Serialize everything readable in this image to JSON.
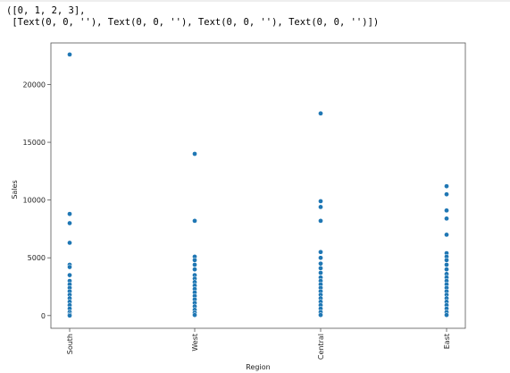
{
  "output_text": {
    "line1": "([0, 1, 2, 3],",
    "line2": " [Text(0, 0, ''), Text(0, 0, ''), Text(0, 0, ''), Text(0, 0, '')])"
  },
  "chart_data": {
    "type": "scatter",
    "title": "",
    "xlabel": "Region",
    "ylabel": "Sales",
    "categories": [
      "South",
      "West",
      "Central",
      "East"
    ],
    "ylim": [
      -1100,
      23600
    ],
    "yticks": [
      0,
      5000,
      10000,
      15000,
      20000
    ],
    "grid": false,
    "marker_color": "#1f77b4",
    "series": [
      {
        "values": [
          [
            0,
            22600
          ],
          [
            0,
            8800
          ],
          [
            0,
            8000
          ],
          [
            0,
            6300
          ],
          [
            0,
            4400
          ],
          [
            0,
            4200
          ],
          [
            0,
            3500
          ],
          [
            0,
            3000
          ],
          [
            0,
            2700
          ],
          [
            0,
            2400
          ],
          [
            0,
            2100
          ],
          [
            0,
            1800
          ],
          [
            0,
            1500
          ],
          [
            0,
            1200
          ],
          [
            0,
            900
          ],
          [
            0,
            600
          ],
          [
            0,
            300
          ],
          [
            0,
            100
          ],
          [
            0,
            0
          ],
          [
            1,
            14000
          ],
          [
            1,
            8200
          ],
          [
            1,
            5100
          ],
          [
            1,
            4800
          ],
          [
            1,
            4400
          ],
          [
            1,
            4000
          ],
          [
            1,
            3500
          ],
          [
            1,
            3200
          ],
          [
            1,
            2900
          ],
          [
            1,
            2600
          ],
          [
            1,
            2300
          ],
          [
            1,
            2000
          ],
          [
            1,
            1700
          ],
          [
            1,
            1400
          ],
          [
            1,
            1100
          ],
          [
            1,
            800
          ],
          [
            1,
            500
          ],
          [
            1,
            250
          ],
          [
            1,
            50
          ],
          [
            2,
            17500
          ],
          [
            2,
            9900
          ],
          [
            2,
            9400
          ],
          [
            2,
            8200
          ],
          [
            2,
            5500
          ],
          [
            2,
            5000
          ],
          [
            2,
            4500
          ],
          [
            2,
            4100
          ],
          [
            2,
            3700
          ],
          [
            2,
            3300
          ],
          [
            2,
            3000
          ],
          [
            2,
            2700
          ],
          [
            2,
            2400
          ],
          [
            2,
            2100
          ],
          [
            2,
            1800
          ],
          [
            2,
            1500
          ],
          [
            2,
            1200
          ],
          [
            2,
            900
          ],
          [
            2,
            600
          ],
          [
            2,
            300
          ],
          [
            2,
            50
          ],
          [
            3,
            11200
          ],
          [
            3,
            10500
          ],
          [
            3,
            9100
          ],
          [
            3,
            8400
          ],
          [
            3,
            7000
          ],
          [
            3,
            5400
          ],
          [
            3,
            5100
          ],
          [
            3,
            4800
          ],
          [
            3,
            4400
          ],
          [
            3,
            4000
          ],
          [
            3,
            3600
          ],
          [
            3,
            3300
          ],
          [
            3,
            3000
          ],
          [
            3,
            2700
          ],
          [
            3,
            2400
          ],
          [
            3,
            2100
          ],
          [
            3,
            1800
          ],
          [
            3,
            1500
          ],
          [
            3,
            1200
          ],
          [
            3,
            900
          ],
          [
            3,
            600
          ],
          [
            3,
            300
          ],
          [
            3,
            50
          ]
        ]
      }
    ]
  }
}
